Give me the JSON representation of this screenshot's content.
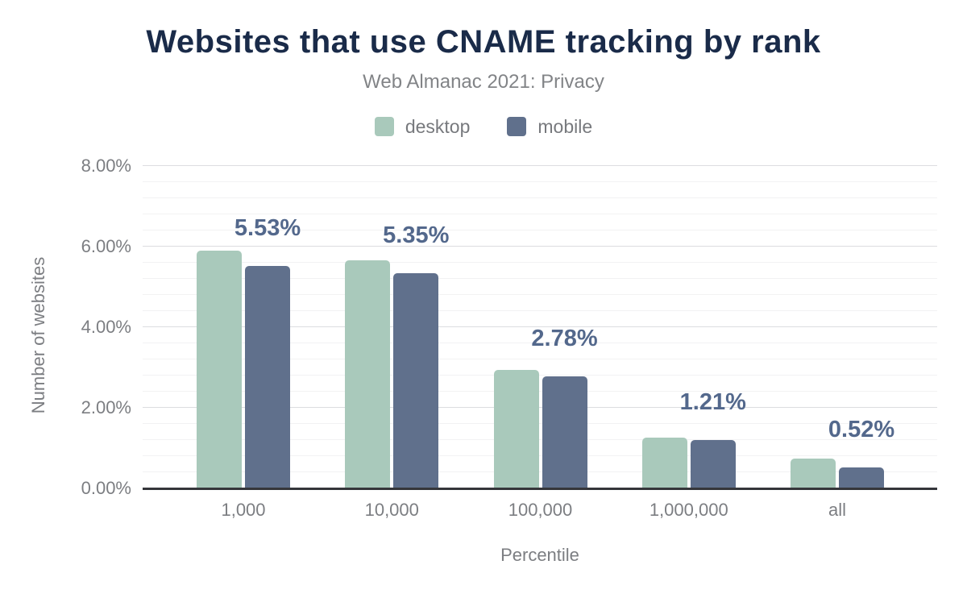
{
  "title": "Websites that use CNAME tracking by rank",
  "subtitle": "Web Almanac 2021: Privacy",
  "legend": [
    {
      "label": "desktop",
      "color": "#a9c9bb"
    },
    {
      "label": "mobile",
      "color": "#60708c"
    }
  ],
  "chart_data": {
    "type": "bar",
    "categories": [
      "1,000",
      "10,000",
      "100,000",
      "1,000,000",
      "all"
    ],
    "series": [
      {
        "name": "desktop",
        "color": "#a9c9bb",
        "values": [
          5.91,
          5.66,
          2.95,
          1.27,
          0.75
        ]
      },
      {
        "name": "mobile",
        "color": "#60708c",
        "values": [
          5.53,
          5.35,
          2.78,
          1.21,
          0.52
        ],
        "data_labels": [
          "5.53%",
          "5.35%",
          "2.78%",
          "1.21%",
          "0.52%"
        ]
      }
    ],
    "title": "Websites that use CNAME tracking by rank",
    "subtitle": "Web Almanac 2021: Privacy",
    "xlabel": "Percentile",
    "ylabel": "Number of websites",
    "ylim": [
      0,
      8
    ],
    "yticks": [
      {
        "value": 0,
        "label": "0.00%"
      },
      {
        "value": 2,
        "label": "2.00%"
      },
      {
        "value": 4,
        "label": "4.00%"
      },
      {
        "value": 6,
        "label": "6.00%"
      },
      {
        "value": 8,
        "label": "8.00%"
      }
    ],
    "minor_grid_step": 0.4,
    "grid": true,
    "legend_position": "top",
    "data_label_color": "#53688c",
    "axis_line_color": "#35363a"
  }
}
